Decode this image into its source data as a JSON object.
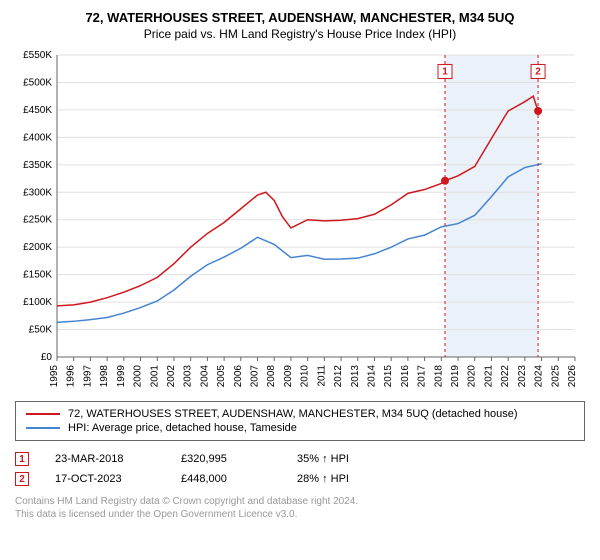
{
  "title": "72, WATERHOUSES STREET, AUDENSHAW, MANCHESTER, M34 5UQ",
  "subtitle": "Price paid vs. HM Land Registry's House Price Index (HPI)",
  "chart": {
    "type": "line",
    "background_color": "#ffffff",
    "plot_border_color": "#666666",
    "grid_color": "#e0e0e0",
    "axis_text_color": "#000000",
    "axis_fontsize": 10,
    "x": {
      "min": 1995,
      "max": 2026,
      "ticks": [
        1995,
        1996,
        1997,
        1998,
        1999,
        2000,
        2001,
        2002,
        2003,
        2004,
        2005,
        2006,
        2007,
        2008,
        2009,
        2010,
        2011,
        2012,
        2013,
        2014,
        2015,
        2016,
        2017,
        2018,
        2019,
        2020,
        2021,
        2022,
        2023,
        2024,
        2025,
        2026
      ]
    },
    "y": {
      "min": 0,
      "max": 550000,
      "ticks": [
        0,
        50000,
        100000,
        150000,
        200000,
        250000,
        300000,
        350000,
        400000,
        450000,
        500000,
        550000
      ],
      "tick_labels": [
        "£0",
        "£50K",
        "£100K",
        "£150K",
        "£200K",
        "£250K",
        "£300K",
        "£350K",
        "£400K",
        "£450K",
        "£500K",
        "£550K"
      ]
    },
    "shaded_band": {
      "x_start": 2018.22,
      "x_end": 2023.79,
      "fill": "#e9eff7",
      "opacity": 0.9
    },
    "series": [
      {
        "name": "property",
        "label": "72, WATERHOUSES STREET, AUDENSHAW, MANCHESTER, M34 5UQ (detached house)",
        "color": "#cf171d",
        "line_width": 1.5,
        "points": [
          [
            1995,
            93000
          ],
          [
            1996,
            95000
          ],
          [
            1997,
            100000
          ],
          [
            1998,
            108000
          ],
          [
            1999,
            118000
          ],
          [
            2000,
            130000
          ],
          [
            2001,
            145000
          ],
          [
            2002,
            170000
          ],
          [
            2003,
            200000
          ],
          [
            2004,
            225000
          ],
          [
            2005,
            245000
          ],
          [
            2006,
            270000
          ],
          [
            2007,
            295000
          ],
          [
            2007.5,
            300000
          ],
          [
            2008,
            285000
          ],
          [
            2008.5,
            255000
          ],
          [
            2009,
            235000
          ],
          [
            2010,
            250000
          ],
          [
            2011,
            248000
          ],
          [
            2012,
            249000
          ],
          [
            2013,
            252000
          ],
          [
            2014,
            260000
          ],
          [
            2015,
            277000
          ],
          [
            2016,
            298000
          ],
          [
            2017,
            305000
          ],
          [
            2018,
            316000
          ],
          [
            2018.22,
            320995
          ],
          [
            2019,
            330000
          ],
          [
            2020,
            347000
          ],
          [
            2021,
            398000
          ],
          [
            2022,
            448000
          ],
          [
            2023,
            465000
          ],
          [
            2023.5,
            475000
          ],
          [
            2023.79,
            448000
          ],
          [
            2024,
            448000
          ]
        ]
      },
      {
        "name": "hpi",
        "label": "HPI: Average price, detached house, Tameside",
        "color": "#4584d1",
        "line_width": 1.5,
        "points": [
          [
            1995,
            63000
          ],
          [
            1996,
            65000
          ],
          [
            1997,
            68000
          ],
          [
            1998,
            72000
          ],
          [
            1999,
            80000
          ],
          [
            2000,
            90000
          ],
          [
            2001,
            102000
          ],
          [
            2002,
            122000
          ],
          [
            2003,
            147000
          ],
          [
            2004,
            168000
          ],
          [
            2005,
            182000
          ],
          [
            2006,
            198000
          ],
          [
            2007,
            218000
          ],
          [
            2008,
            205000
          ],
          [
            2009,
            181000
          ],
          [
            2010,
            185000
          ],
          [
            2011,
            178000
          ],
          [
            2012,
            178500
          ],
          [
            2013,
            180000
          ],
          [
            2014,
            188000
          ],
          [
            2015,
            200000
          ],
          [
            2016,
            215000
          ],
          [
            2017,
            222000
          ],
          [
            2018,
            237000
          ],
          [
            2019,
            243000
          ],
          [
            2020,
            258000
          ],
          [
            2021,
            292000
          ],
          [
            2022,
            328000
          ],
          [
            2023,
            345000
          ],
          [
            2024,
            352000
          ]
        ]
      }
    ],
    "markers": [
      {
        "id": "1",
        "x": 2018.22,
        "y": 320995,
        "color": "#cf171d",
        "badge_y": 520000
      },
      {
        "id": "2",
        "x": 2023.79,
        "y": 448000,
        "color": "#cf171d",
        "badge_y": 520000
      }
    ],
    "marker_radius": 4
  },
  "legend": {
    "border_color": "#666666",
    "items": [
      {
        "color": "#cf171d",
        "text": "72, WATERHOUSES STREET, AUDENSHAW, MANCHESTER, M34 5UQ (detached house)"
      },
      {
        "color": "#4584d1",
        "text": "HPI: Average price, detached house, Tameside"
      }
    ]
  },
  "events": [
    {
      "badge": "1",
      "badge_color": "#cf171d",
      "date": "23-MAR-2018",
      "price": "£320,995",
      "delta": "35% ↑ HPI"
    },
    {
      "badge": "2",
      "badge_color": "#cf171d",
      "date": "17-OCT-2023",
      "price": "£448,000",
      "delta": "28% ↑ HPI"
    }
  ],
  "attribution": {
    "line1": "Contains HM Land Registry data © Crown copyright and database right 2024.",
    "line2": "This data is licensed under the Open Government Licence v3.0."
  }
}
